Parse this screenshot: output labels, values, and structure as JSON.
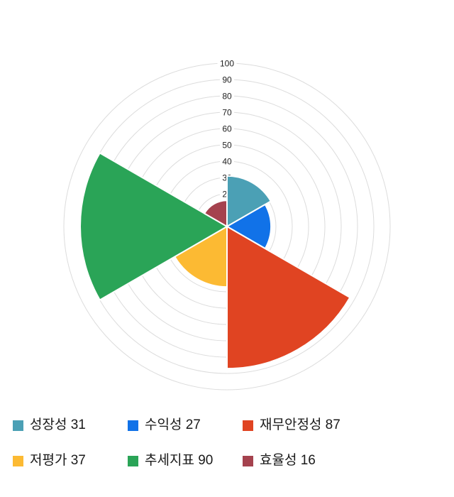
{
  "chart_data": {
    "type": "pie",
    "subtype": "polar-area-rose",
    "title": "",
    "categories": [
      "성장성",
      "수익성",
      "재무안정성",
      "저평가",
      "추세지표",
      "효율성"
    ],
    "values": [
      31,
      27,
      87,
      37,
      90,
      16
    ],
    "colors": [
      "#4ba0b5",
      "#1172e8",
      "#e04422",
      "#fcba33",
      "#2aa457",
      "#a5424e"
    ],
    "sector_span_deg": 60,
    "start_angle_deg": 0,
    "rotation": "clockwise-from-north",
    "radial_axis": {
      "min": 0,
      "max": 100,
      "tick_interval": 10,
      "tick_labels": [
        "20",
        "30",
        "40",
        "50",
        "60",
        "70",
        "80",
        "90",
        "100"
      ],
      "tick_label_color": "#222222",
      "tick_font_size": 12
    },
    "grid": {
      "show": true,
      "circle_count": 10,
      "color": "#dcdcdc"
    },
    "legend_position": "bottom",
    "sector_stroke_color": "#ffffff"
  },
  "legend": {
    "items": [
      {
        "text": "성장성 31",
        "label": "성장성",
        "value": 31,
        "color": "#4ba0b5"
      },
      {
        "text": "수익성 27",
        "label": "수익성",
        "value": 27,
        "color": "#1172e8"
      },
      {
        "text": "재무안정성 87",
        "label": "재무안정성",
        "value": 87,
        "color": "#e04422"
      },
      {
        "text": "저평가 37",
        "label": "저평가",
        "value": 37,
        "color": "#fcba33"
      },
      {
        "text": "추세지표 90",
        "label": "추세지표",
        "value": 90,
        "color": "#2aa457"
      },
      {
        "text": "효율성 16",
        "label": "효율성",
        "value": 16,
        "color": "#a5424e"
      }
    ]
  }
}
